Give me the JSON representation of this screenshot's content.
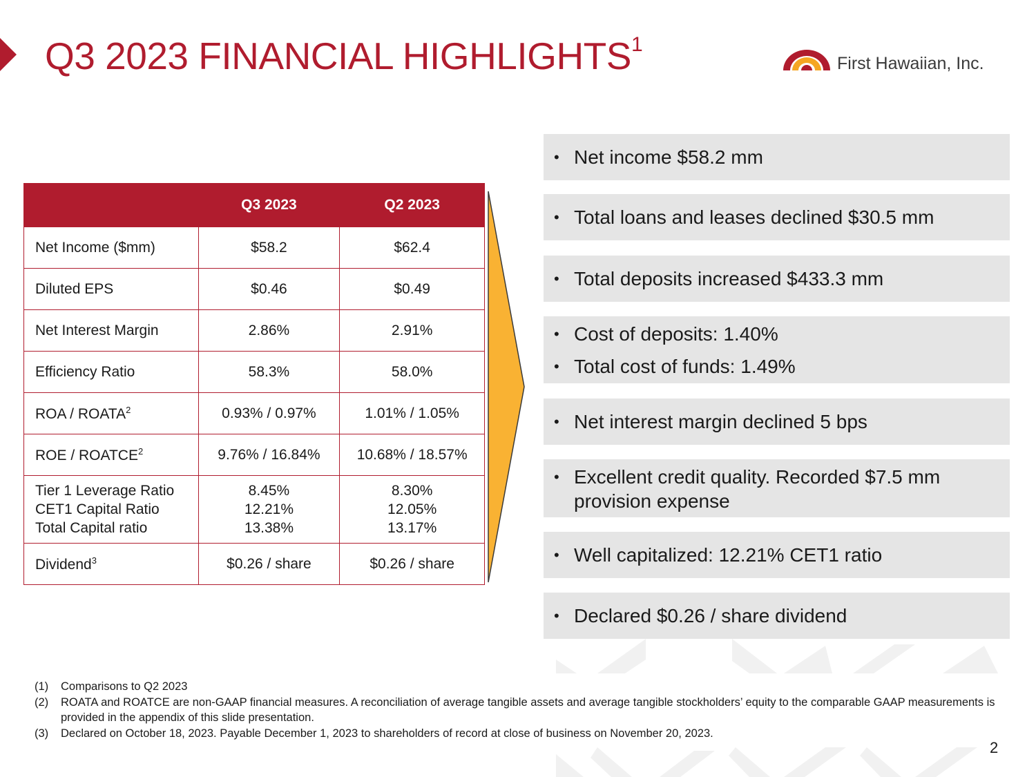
{
  "title": {
    "main": "Q3 2023 FINANCIAL HIGHLIGHTS",
    "sup": "1"
  },
  "logo": {
    "text": "First Hawaiian, Inc.",
    "colors": {
      "red": "#b01c2e",
      "gold": "#f5a623"
    }
  },
  "table": {
    "headers": [
      "",
      "Q3 2023",
      "Q2 2023"
    ],
    "rows": [
      {
        "label": "Net Income ($mm)",
        "q3": "$58.2",
        "q2": "$62.4"
      },
      {
        "label": "Diluted EPS",
        "q3": "$0.46",
        "q2": "$0.49"
      },
      {
        "label": "Net Interest Margin",
        "q3": "2.86%",
        "q2": "2.91%"
      },
      {
        "label": "Efficiency Ratio",
        "q3": "58.3%",
        "q2": "58.0%"
      },
      {
        "label": "ROA / ROATA",
        "sup": "2",
        "q3": "0.93% / 0.97%",
        "q2": "1.01% / 1.05%"
      },
      {
        "label": "ROE / ROATCE",
        "sup": "2",
        "q3": "9.76% / 16.84%",
        "q2": "10.68% / 18.57%"
      }
    ],
    "capital": {
      "labels": [
        "Tier 1 Leverage Ratio",
        "CET1 Capital Ratio",
        "Total Capital ratio"
      ],
      "q3": [
        "8.45%",
        "12.21%",
        "13.38%"
      ],
      "q2": [
        "8.30%",
        "12.05%",
        "13.17%"
      ]
    },
    "dividend": {
      "label": "Dividend",
      "sup": "3",
      "q3": "$0.26 / share",
      "q2": "$0.26 / share"
    }
  },
  "bullets": [
    {
      "lines": [
        "Net income $58.2 mm"
      ]
    },
    {
      "lines": [
        "Total loans and leases declined $30.5 mm"
      ]
    },
    {
      "lines": [
        "Total deposits increased $433.3 mm"
      ]
    },
    {
      "lines": [
        "Cost of deposits:  1.40%",
        "Total cost of funds: 1.49%"
      ]
    },
    {
      "lines": [
        "Net interest margin declined 5 bps"
      ]
    },
    {
      "lines": [
        "Excellent credit quality.  Recorded $7.5 mm",
        "provision expense"
      ]
    },
    {
      "lines": [
        "Well capitalized:  12.21% CET1 ratio"
      ]
    },
    {
      "lines": [
        "Declared $0.26 / share dividend"
      ]
    }
  ],
  "bullet_glyph": "•",
  "footnotes": [
    {
      "num": "(1)",
      "text": "Comparisons to Q2 2023"
    },
    {
      "num": "(2)",
      "text": "ROATA and ROATCE are non-GAAP financial measures.  A reconciliation of average tangible assets and average tangible stockholders’ equity to the comparable GAAP measurements is provided in the appendix of this slide presentation."
    },
    {
      "num": "(3)",
      "text": "Declared on October 18, 2023.  Payable December 1, 2023 to shareholders of record at close of business on November 20, 2023."
    }
  ],
  "page_number": "2",
  "colors": {
    "brand_red": "#b01c2e",
    "arrow": "#f9b233",
    "bullet_bg": "#e5e5e5"
  }
}
